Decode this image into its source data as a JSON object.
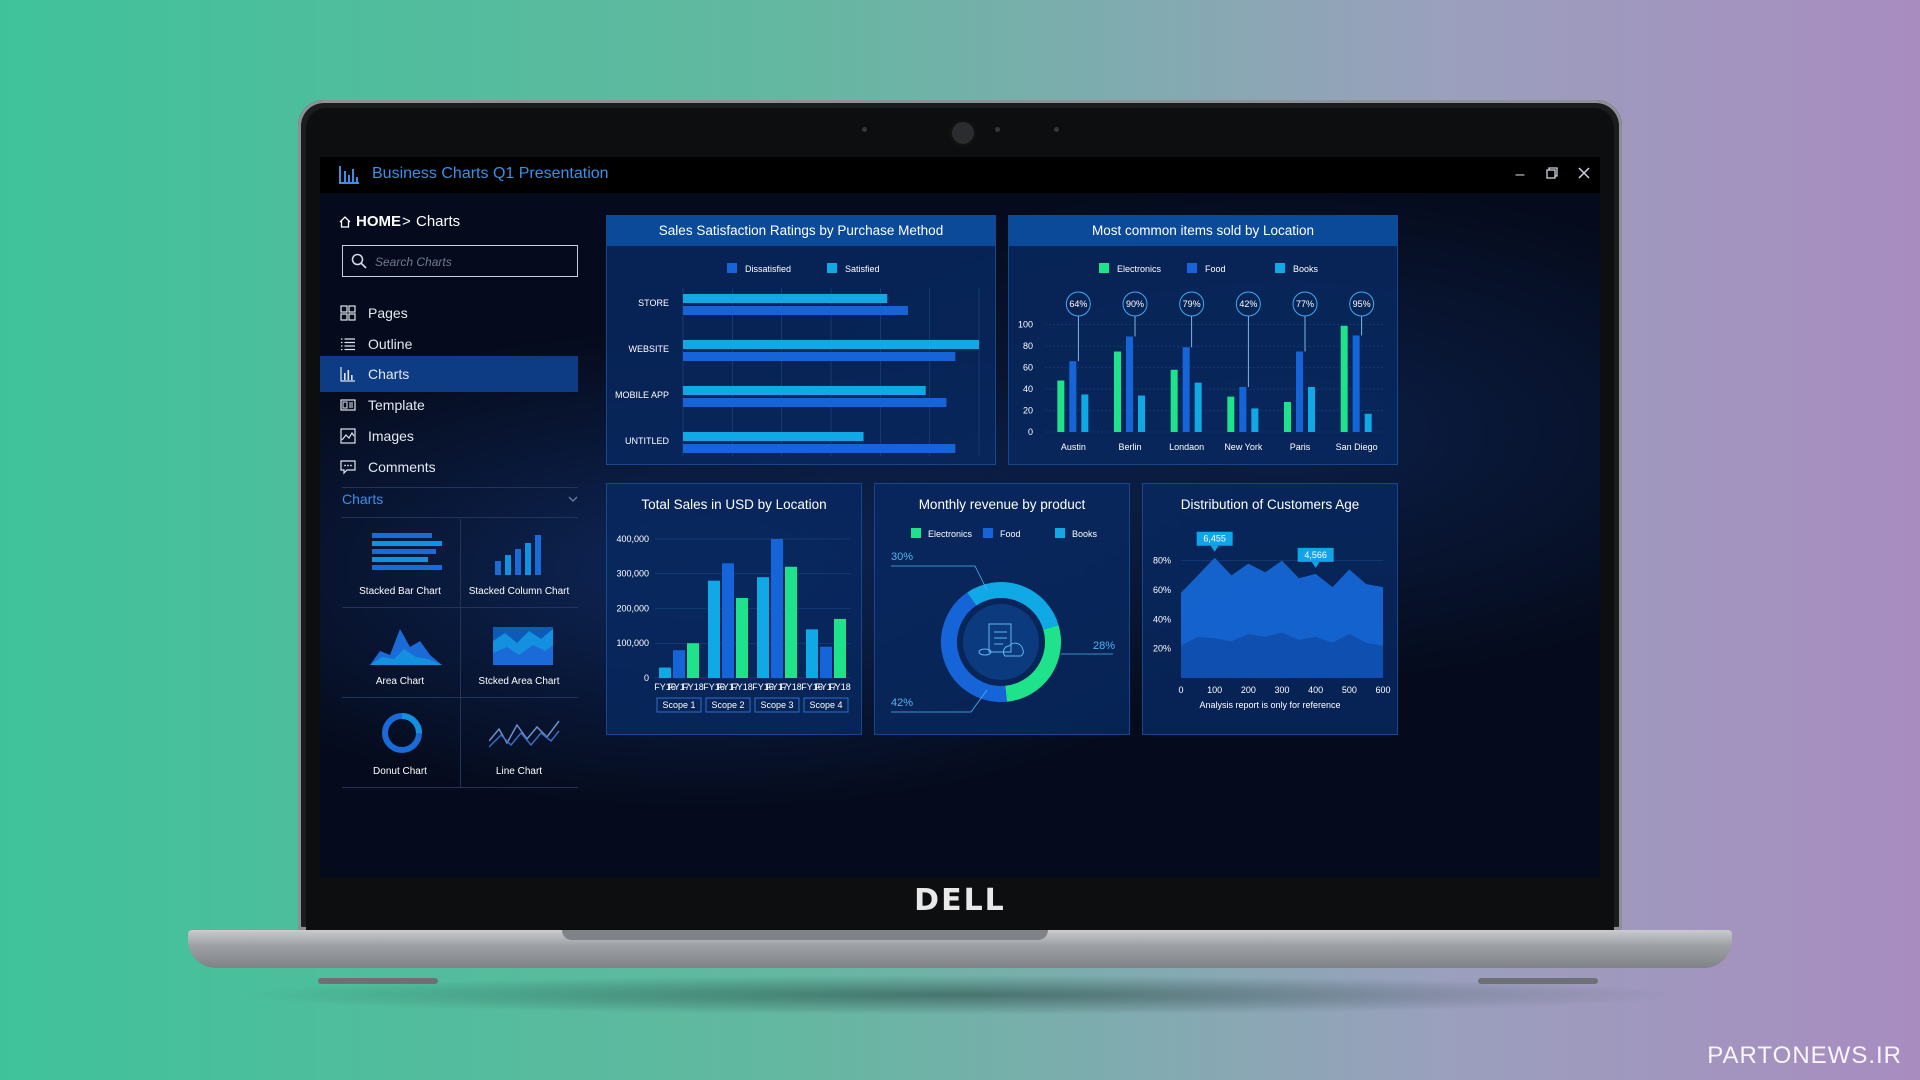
{
  "window": {
    "title": "Business Charts Q1 Presentation"
  },
  "breadcrumb": {
    "home": "HOME",
    "separator": ">",
    "current": "Charts"
  },
  "search": {
    "placeholder": "Search Charts"
  },
  "sidebar": {
    "items": [
      {
        "label": "Pages",
        "icon": "grid-icon"
      },
      {
        "label": "Outline",
        "icon": "list-icon"
      },
      {
        "label": "Charts",
        "icon": "bar-chart-icon",
        "active": true
      },
      {
        "label": "Template",
        "icon": "template-icon"
      },
      {
        "label": "Images",
        "icon": "image-icon"
      },
      {
        "label": "Comments",
        "icon": "comment-icon"
      }
    ],
    "charts_section": {
      "label": "Charts"
    },
    "chart_tiles": [
      {
        "label": "Stacked Bar Chart"
      },
      {
        "label": "Stacked Column Chart"
      },
      {
        "label": "Area Chart"
      },
      {
        "label": "Stcked Area Chart"
      },
      {
        "label": "Donut Chart"
      },
      {
        "label": "Line Chart"
      }
    ]
  },
  "colors": {
    "accent": "#3a8fe8",
    "green": "#1fe38a",
    "blue": "#1565d8",
    "cyan": "#11a8e6",
    "active_nav": "#0d3c85"
  },
  "device": {
    "brand": "DELL"
  },
  "watermark": "PARTONEWS.IR",
  "chart_data": [
    {
      "type": "bar",
      "orientation": "horizontal",
      "title": "Sales Satisfaction Ratings by Purchase Method",
      "categories": [
        "STORE",
        "WEBSITE",
        "MOBILE APP",
        "UNTITLED"
      ],
      "series": [
        {
          "name": "Dissatisfied",
          "values": [
            76,
            92,
            89,
            92
          ]
        },
        {
          "name": "Satisfied",
          "values": [
            69,
            100,
            82,
            61
          ]
        }
      ],
      "xlim": [
        0,
        100
      ],
      "legend": "top-center"
    },
    {
      "type": "bar",
      "title": "Most common items sold by Location",
      "categories": [
        "Austin",
        "Berlin",
        "Londaon",
        "New York",
        "Paris",
        "San Diego"
      ],
      "series": [
        {
          "name": "Electronics",
          "values": [
            48,
            75,
            58,
            33,
            28,
            99
          ]
        },
        {
          "name": "Food",
          "values": [
            66,
            89,
            79,
            42,
            75,
            90
          ]
        },
        {
          "name": "Books",
          "values": [
            35,
            34,
            46,
            22,
            42,
            17
          ]
        }
      ],
      "annotations": [
        "64%",
        "90%",
        "79%",
        "42%",
        "77%",
        "95%"
      ],
      "yticks": [
        0,
        20,
        40,
        60,
        80,
        100
      ],
      "ylim": [
        0,
        110
      ],
      "legend": "top-center"
    },
    {
      "type": "bar",
      "title": "Total Sales in USD by Location",
      "groups": [
        "Scope 1",
        "Scope 2",
        "Scope 3",
        "Scope 4"
      ],
      "categories": [
        "FY16",
        "FY17",
        "FY18"
      ],
      "values": [
        [
          30000,
          80000,
          100000
        ],
        [
          280000,
          330000,
          230000
        ],
        [
          290000,
          400000,
          320000
        ],
        [
          140000,
          90000,
          170000
        ]
      ],
      "yticks": [
        "0",
        "100,000",
        "200,000",
        "300,000",
        "400,000"
      ],
      "ylim": [
        0,
        420000
      ]
    },
    {
      "type": "pie",
      "variant": "donut",
      "title": "Monthly revenue by product",
      "series": [
        {
          "name": "Electronics",
          "value": 28
        },
        {
          "name": "Food",
          "value": 42
        },
        {
          "name": "Books",
          "value": 30
        }
      ],
      "labels": [
        "30%",
        "28%",
        "42%"
      ],
      "legend": "top-center"
    },
    {
      "type": "area",
      "title": "Distribution of Customers Age",
      "x": [
        0,
        50,
        100,
        150,
        200,
        250,
        300,
        350,
        400,
        450,
        500,
        550,
        600
      ],
      "series": [
        {
          "values": [
            58,
            70,
            82,
            70,
            78,
            72,
            80,
            68,
            71,
            62,
            74,
            64,
            62
          ]
        },
        {
          "values": [
            22,
            28,
            27,
            25,
            30,
            28,
            31,
            26,
            28,
            24,
            30,
            24,
            22
          ]
        }
      ],
      "xticks": [
        "0",
        "100",
        "200",
        "300",
        "400",
        "500",
        "600"
      ],
      "yticks": [
        "20%",
        "40%",
        "60%",
        "80%"
      ],
      "ylim": [
        0,
        90
      ],
      "callouts": [
        "6,455",
        "4,566"
      ],
      "note": "Analysis report is only for reference"
    }
  ]
}
